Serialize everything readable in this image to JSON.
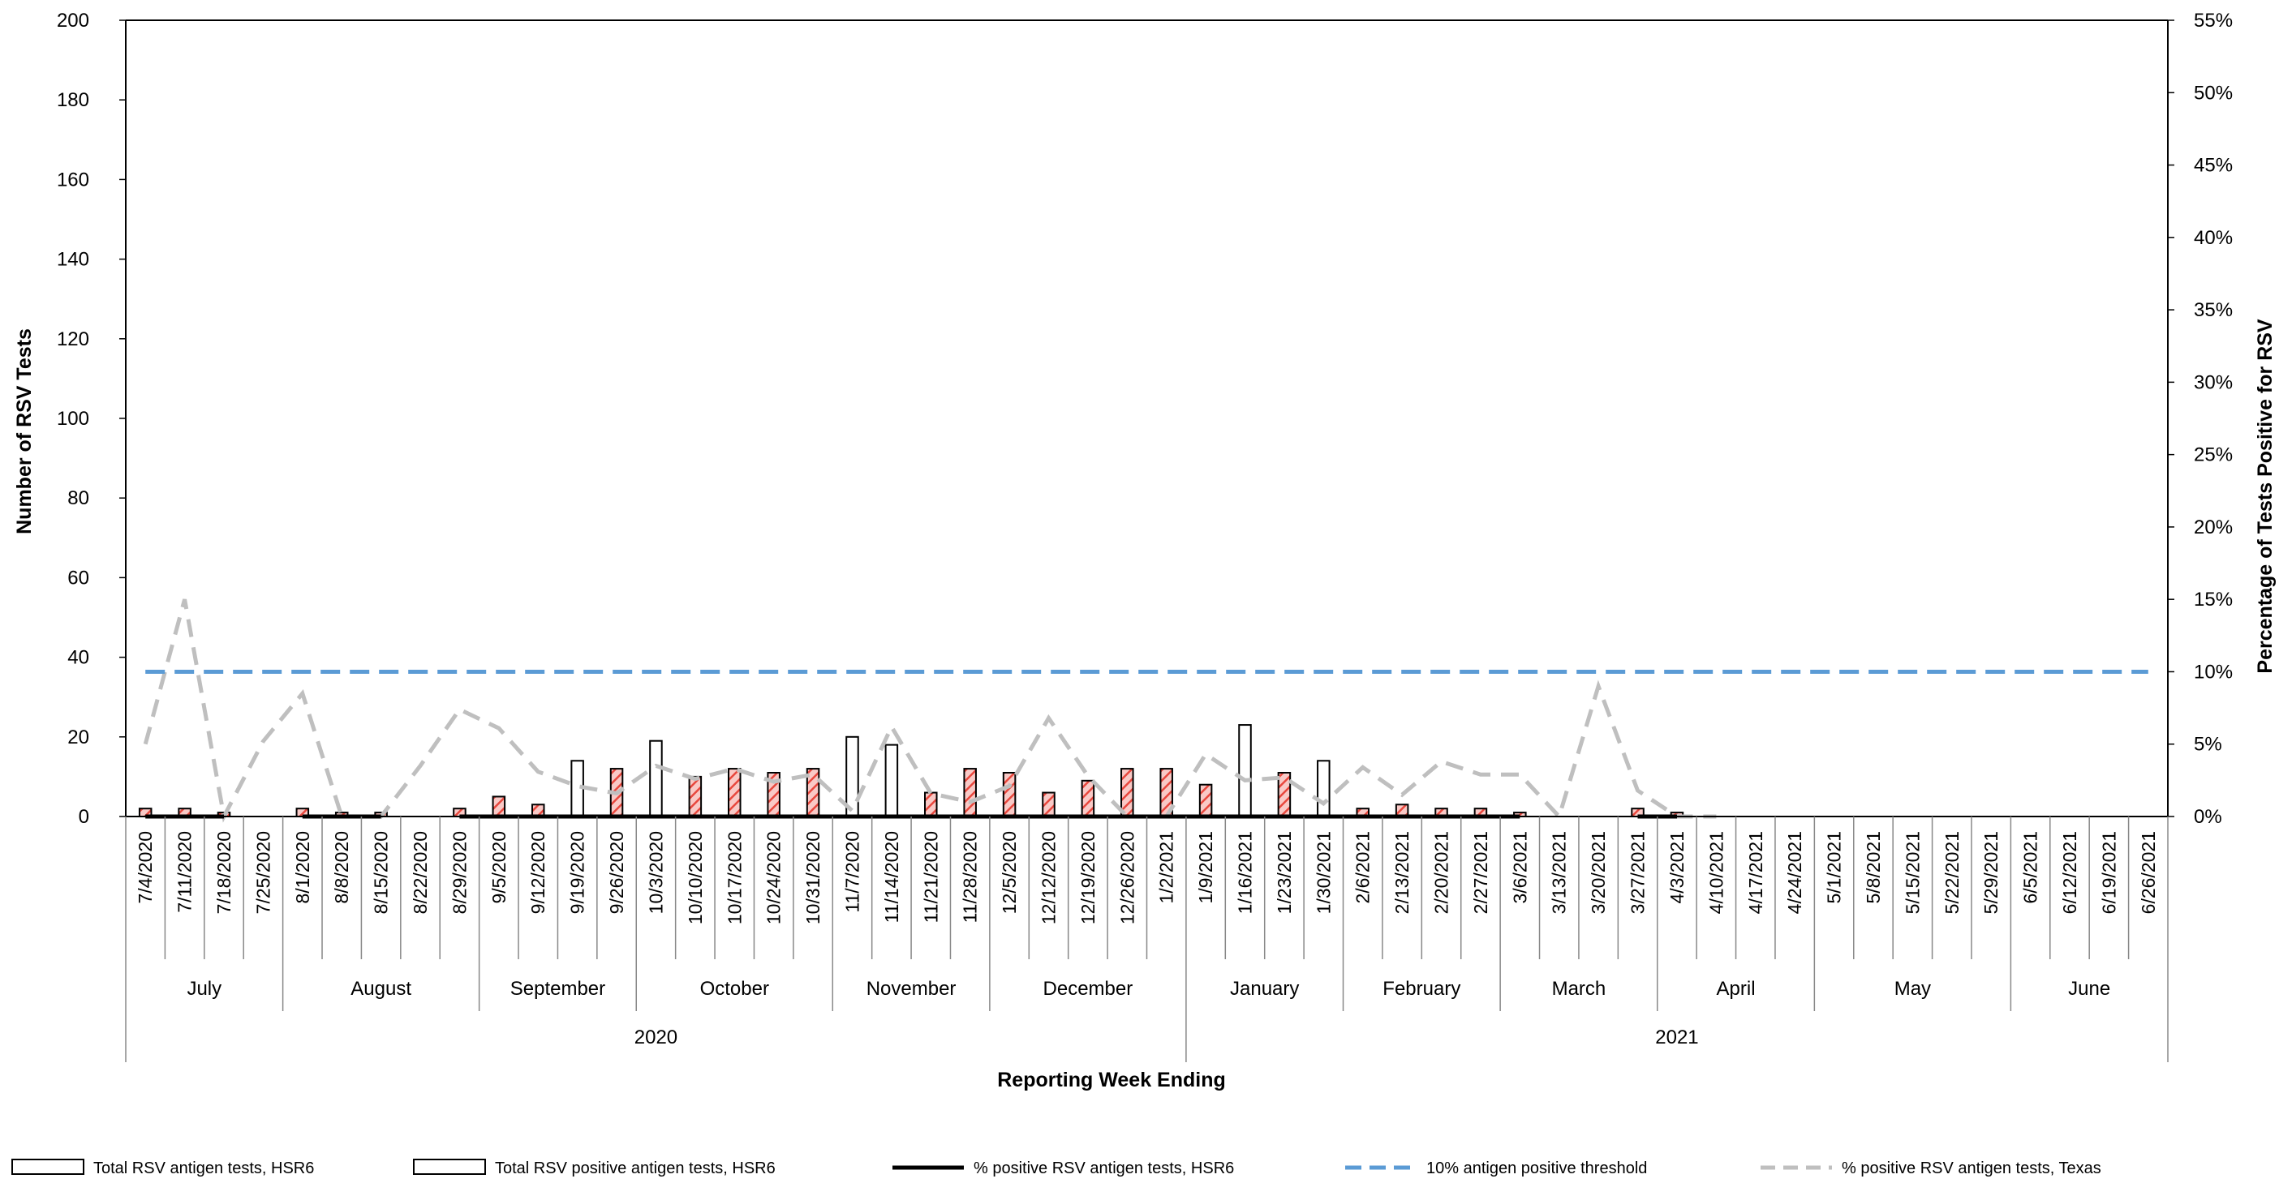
{
  "chart_data": {
    "type": "bar",
    "xlabel": "Reporting Week Ending",
    "ylabel": "Number of RSV Tests",
    "y2label": "Percentage of Tests Positive for RSV",
    "ylim": [
      0,
      200
    ],
    "y2lim": [
      0,
      55
    ],
    "y_ticks": [
      "0",
      "20",
      "40",
      "60",
      "80",
      "100",
      "120",
      "140",
      "160",
      "180",
      "200"
    ],
    "y2_ticks": [
      "0%",
      "5%",
      "10%",
      "15%",
      "20%",
      "25%",
      "30%",
      "35%",
      "40%",
      "45%",
      "50%",
      "55%"
    ],
    "categories": [
      "7/4/2020",
      "7/11/2020",
      "7/18/2020",
      "7/25/2020",
      "8/1/2020",
      "8/8/2020",
      "8/15/2020",
      "8/22/2020",
      "8/29/2020",
      "9/5/2020",
      "9/12/2020",
      "9/19/2020",
      "9/26/2020",
      "10/3/2020",
      "10/10/2020",
      "10/17/2020",
      "10/24/2020",
      "10/31/2020",
      "11/7/2020",
      "11/14/2020",
      "11/21/2020",
      "11/28/2020",
      "12/5/2020",
      "12/12/2020",
      "12/19/2020",
      "12/26/2020",
      "1/2/2021",
      "1/9/2021",
      "1/16/2021",
      "1/23/2021",
      "1/30/2021",
      "2/6/2021",
      "2/13/2021",
      "2/20/2021",
      "2/27/2021",
      "3/6/2021",
      "3/13/2021",
      "3/20/2021",
      "3/27/2021",
      "4/3/2021",
      "4/10/2021",
      "4/17/2021",
      "4/24/2021",
      "5/1/2021",
      "5/8/2021",
      "5/15/2021",
      "5/22/2021",
      "5/29/2021",
      "6/5/2021",
      "6/12/2021",
      "6/19/2021",
      "6/26/2021"
    ],
    "month_groups": [
      {
        "label": "July",
        "start": 0,
        "count": 4
      },
      {
        "label": "August",
        "start": 4,
        "count": 5
      },
      {
        "label": "September",
        "start": 9,
        "count": 4
      },
      {
        "label": "October",
        "start": 13,
        "count": 5
      },
      {
        "label": "November",
        "start": 18,
        "count": 4
      },
      {
        "label": "December",
        "start": 22,
        "count": 5
      },
      {
        "label": "January",
        "start": 27,
        "count": 4
      },
      {
        "label": "February",
        "start": 31,
        "count": 4
      },
      {
        "label": "March",
        "start": 35,
        "count": 4
      },
      {
        "label": "April",
        "start": 39,
        "count": 4
      },
      {
        "label": "May",
        "start": 43,
        "count": 5
      },
      {
        "label": "June",
        "start": 48,
        "count": 4
      }
    ],
    "year_groups": [
      {
        "label": "2020",
        "start": 0,
        "count": 27
      },
      {
        "label": "2021",
        "start": 27,
        "count": 25
      }
    ],
    "series": [
      {
        "name": "Total RSV antigen tests, HSR6",
        "kind": "bar",
        "style": "hatched",
        "axis": "left",
        "values": [
          2,
          2,
          1,
          0,
          2,
          1,
          1,
          0,
          2,
          5,
          3,
          14,
          12,
          19,
          10,
          12,
          11,
          12,
          20,
          18,
          6,
          12,
          11,
          6,
          9,
          12,
          12,
          8,
          23,
          11,
          14,
          2,
          3,
          2,
          2,
          1,
          0,
          0,
          2,
          1,
          0,
          0,
          0,
          0,
          0,
          0,
          0,
          0,
          0,
          0,
          0,
          0
        ]
      },
      {
        "name": "Total RSV positive antigen tests, HSR6",
        "kind": "bar",
        "style": "outline",
        "axis": "left",
        "values": [
          0,
          0,
          0,
          0,
          0,
          0,
          0,
          0,
          0,
          0,
          0,
          0,
          0,
          0,
          0,
          0,
          0,
          0,
          0,
          0,
          0,
          0,
          0,
          0,
          0,
          0,
          0,
          0,
          0,
          0,
          0,
          0,
          0,
          0,
          0,
          0,
          0,
          0,
          0,
          0,
          0,
          0,
          0,
          0,
          0,
          0,
          0,
          0,
          0,
          0,
          0,
          0
        ]
      },
      {
        "name": "% positive RSV antigen tests, HSR6",
        "kind": "line",
        "axis": "right",
        "values": [
          0,
          0,
          0,
          null,
          0,
          0,
          0,
          null,
          0,
          0,
          0,
          0,
          0,
          0,
          0,
          0,
          0,
          0,
          0,
          0,
          0,
          0,
          0,
          0,
          0,
          0,
          0,
          0,
          0,
          0,
          0,
          0,
          0,
          0,
          0,
          0,
          null,
          null,
          0,
          0,
          null,
          null,
          null,
          null,
          null,
          null,
          null,
          null,
          null,
          null,
          null,
          null
        ]
      },
      {
        "name": "10% antigen positive threshold",
        "kind": "line",
        "axis": "right",
        "values": [
          10,
          10,
          10,
          10,
          10,
          10,
          10,
          10,
          10,
          10,
          10,
          10,
          10,
          10,
          10,
          10,
          10,
          10,
          10,
          10,
          10,
          10,
          10,
          10,
          10,
          10,
          10,
          10,
          10,
          10,
          10,
          10,
          10,
          10,
          10,
          10,
          10,
          10,
          10,
          10,
          10,
          10,
          10,
          10,
          10,
          10,
          10,
          10,
          10,
          10,
          10,
          10
        ]
      },
      {
        "name": "% positive RSV antigen tests, Texas",
        "kind": "line",
        "axis": "right",
        "values": [
          5,
          15,
          0,
          5.2,
          8.5,
          0,
          0,
          3.5,
          7.4,
          6.1,
          3.1,
          2.1,
          1.6,
          3.5,
          2.6,
          3.3,
          2.4,
          2.9,
          0.4,
          6.2,
          1.6,
          1,
          2.1,
          6.8,
          2.8,
          0,
          0,
          4.3,
          2.5,
          2.7,
          0.9,
          3.4,
          1.5,
          3.8,
          2.9,
          2.9,
          0,
          9,
          1.8,
          0,
          0,
          null,
          null,
          null,
          null,
          null,
          null,
          null,
          null,
          null,
          null,
          null
        ]
      }
    ],
    "colors": {
      "hatch": "#e8473d",
      "hatch_fill": "#f9c9c6",
      "bar_edge": "#000000",
      "hsr6_line": "#000000",
      "threshold_line": "#5b9bd5",
      "texas_line": "#bfbfbf"
    },
    "legend_position": "bottom",
    "grid": false
  }
}
